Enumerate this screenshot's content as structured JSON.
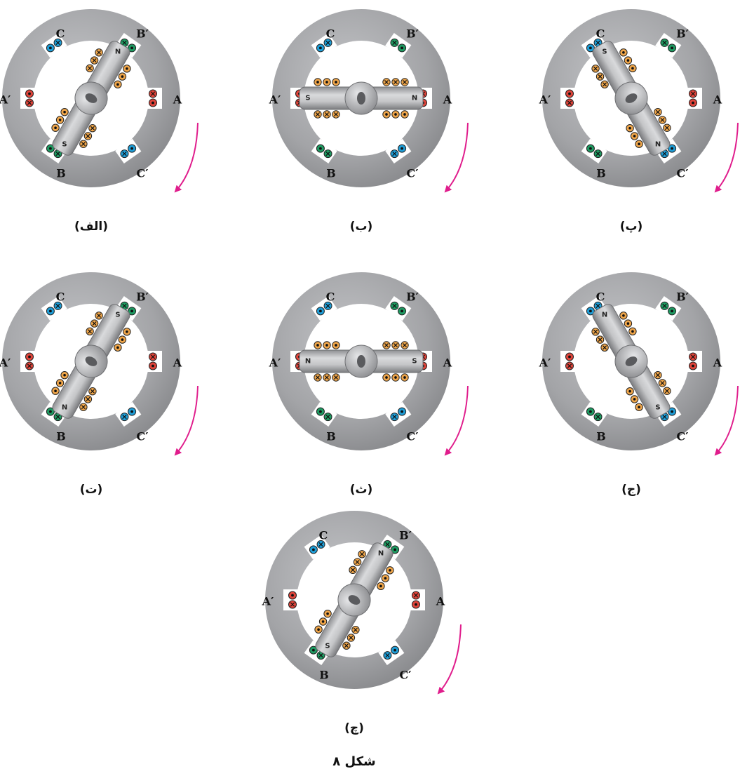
{
  "figure_title": "شکل ۸",
  "colors": {
    "phase_a": "#e0443a",
    "phase_b": "#1e9b62",
    "phase_c": "#1e9ed8",
    "rotor_coil": "#f0a64a",
    "stator": "#9a9b9e",
    "rotation_arrow": "#e01d8c"
  },
  "stator_labels": {
    "A": "A",
    "A_prime": "A′",
    "B": "B",
    "B_prime": "B′",
    "C": "C",
    "C_prime": "C′"
  },
  "pole_labels": {
    "north": "N",
    "south": "S"
  },
  "panels": [
    {
      "caption": "(الف)",
      "rotor_angle_deg": 60,
      "north_side": "upper-right"
    },
    {
      "caption": "(ب)",
      "rotor_angle_deg": 0,
      "north_side": "right"
    },
    {
      "caption": "(پ)",
      "rotor_angle_deg": -60,
      "north_side": "lower-right"
    },
    {
      "caption": "(ت)",
      "rotor_angle_deg": 60,
      "north_side": "lower-left"
    },
    {
      "caption": "(ث)",
      "rotor_angle_deg": 0,
      "north_side": "left"
    },
    {
      "caption": "(ج)",
      "rotor_angle_deg": -60,
      "north_side": "upper-left"
    },
    {
      "caption": "(چ)",
      "rotor_angle_deg": 60,
      "north_side": "upper-right"
    }
  ]
}
